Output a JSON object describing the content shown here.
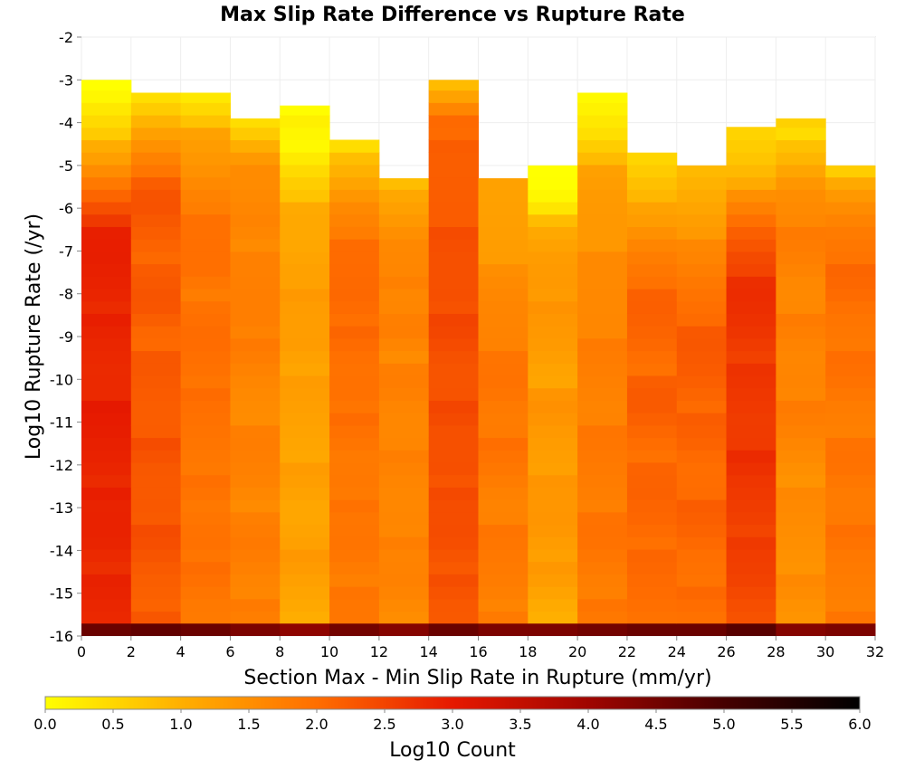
{
  "chart_data": {
    "type": "heatmap",
    "title": "Max Slip Rate Difference vs Rupture Rate",
    "xlabel": "Section Max - Min Slip Rate in Rupture (mm/yr)",
    "ylabel": "Log10 Rupture Rate (/yr)",
    "xlim": [
      0,
      32
    ],
    "ylim": [
      -16,
      -2
    ],
    "x_bin_width": 2,
    "y_bin_width": 0.29,
    "xticks": [
      "0",
      "2",
      "4",
      "6",
      "8",
      "10",
      "12",
      "14",
      "16",
      "18",
      "20",
      "22",
      "24",
      "26",
      "28",
      "30",
      "32"
    ],
    "yticks": [
      "-2",
      "-3",
      "-4",
      "-5",
      "-6",
      "-7",
      "-8",
      "-9",
      "-10",
      "-11",
      "-12",
      "-13",
      "-14",
      "-15",
      "-16"
    ],
    "colorbar": {
      "label": "Log10 Count",
      "range": [
        0,
        6
      ],
      "ticks": [
        "0.0",
        "0.5",
        "1.0",
        "1.5",
        "2.0",
        "2.5",
        "3.0",
        "3.5",
        "4.0",
        "4.5",
        "5.0",
        "5.5",
        "6.0"
      ],
      "colormap": "heat"
    },
    "columns": [
      {
        "x_start": 0,
        "top": -3.0,
        "profile": [
          0.1,
          0.7,
          1.3,
          2.2,
          3.0,
          3.1,
          3.1,
          3.0,
          3.0,
          3.1,
          3.1,
          3.1,
          3.0,
          3.1,
          3.0,
          3.0,
          3.0
        ],
        "bottom_dark": 4.6
      },
      {
        "x_start": 2,
        "top": -3.3,
        "profile": [
          0.5,
          1.4,
          2.1,
          2.5,
          2.4,
          2.3,
          2.5,
          2.3,
          2.4,
          2.4,
          2.5,
          2.4,
          2.5,
          2.5,
          2.4,
          2.4,
          2.3
        ],
        "bottom_dark": 4.7
      },
      {
        "x_start": 4,
        "top": -3.3,
        "profile": [
          0.5,
          1.3,
          1.6,
          2.0,
          2.1,
          2.2,
          2.0,
          2.2,
          2.2,
          2.1,
          2.1,
          2.1,
          2.0,
          2.2,
          2.1,
          2.0,
          2.1
        ],
        "bottom_dark": 4.6
      },
      {
        "x_start": 6,
        "top": -3.9,
        "profile": [
          0.6,
          1.6,
          1.7,
          1.9,
          1.8,
          1.9,
          2.0,
          1.9,
          1.8,
          1.8,
          1.9,
          1.9,
          1.8,
          2.0,
          1.9,
          1.9,
          1.8
        ],
        "bottom_dark": 4.4
      },
      {
        "x_start": 8,
        "top": -3.6,
        "profile": [
          0.3,
          0.2,
          0.8,
          1.2,
          1.3,
          1.5,
          1.4,
          1.5,
          1.4,
          1.4,
          1.4,
          1.4,
          1.3,
          1.5,
          1.4,
          1.3,
          1.2
        ],
        "bottom_dark": 4.2
      },
      {
        "x_start": 10,
        "top": -4.4,
        "profile": [
          0.7,
          1.2,
          1.8,
          2.1,
          2.2,
          2.3,
          2.2,
          2.1,
          2.2,
          2.1,
          2.0,
          2.1,
          2.0,
          2.1,
          2.0,
          2.0,
          2.1
        ],
        "bottom_dark": 4.5
      },
      {
        "x_start": 12,
        "top": -5.3,
        "profile": [
          1.1,
          1.4,
          1.8,
          1.9,
          1.7,
          2.0,
          1.8,
          1.9,
          1.8,
          1.9,
          1.8,
          1.8,
          1.9,
          1.8,
          1.9,
          1.8,
          1.7
        ],
        "bottom_dark": 4.3
      },
      {
        "x_start": 14,
        "top": -3.0,
        "profile": [
          1.0,
          2.3,
          2.3,
          2.4,
          2.5,
          2.5,
          2.6,
          2.6,
          2.5,
          2.6,
          2.5,
          2.6,
          2.5,
          2.6,
          2.5,
          2.4,
          2.5
        ],
        "bottom_dark": 4.6
      },
      {
        "x_start": 16,
        "top": -5.3,
        "profile": [
          1.3,
          1.4,
          1.5,
          1.6,
          1.8,
          1.9,
          2.0,
          2.1,
          2.0,
          2.1,
          2.0,
          1.9,
          2.0,
          2.0,
          2.0,
          1.9,
          1.9
        ],
        "bottom_dark": 4.4
      },
      {
        "x_start": 18,
        "top": -5.0,
        "profile": [
          0.1,
          0.4,
          1.2,
          1.5,
          1.6,
          1.5,
          1.5,
          1.4,
          1.6,
          1.5,
          1.5,
          1.5,
          1.6,
          1.5,
          1.4,
          1.2,
          1.3
        ],
        "bottom_dark": 4.4
      },
      {
        "x_start": 20,
        "top": -3.3,
        "profile": [
          0.2,
          0.6,
          1.3,
          1.5,
          1.6,
          1.7,
          1.8,
          1.9,
          1.9,
          1.9,
          2.0,
          2.0,
          2.0,
          2.1,
          2.0,
          2.0,
          1.9
        ],
        "bottom_dark": 4.5
      },
      {
        "x_start": 22,
        "top": -4.7,
        "profile": [
          0.7,
          1.1,
          1.4,
          1.9,
          2.2,
          2.3,
          2.3,
          2.2,
          2.4,
          2.3,
          2.2,
          2.3,
          2.3,
          2.2,
          2.2,
          2.2,
          2.1
        ],
        "bottom_dark": 4.6
      },
      {
        "x_start": 24,
        "top": -5.0,
        "profile": [
          1.0,
          1.3,
          1.6,
          1.8,
          2.1,
          2.3,
          2.4,
          2.4,
          2.3,
          2.3,
          2.2,
          2.3,
          2.3,
          2.2,
          2.2,
          2.1,
          2.1
        ],
        "bottom_dark": 4.6
      },
      {
        "x_start": 26,
        "top": -4.1,
        "profile": [
          0.7,
          1.0,
          1.6,
          2.3,
          2.7,
          2.9,
          2.9,
          2.8,
          2.8,
          2.8,
          2.9,
          2.8,
          2.8,
          2.7,
          2.7,
          2.6,
          2.6
        ],
        "bottom_dark": 4.8
      },
      {
        "x_start": 28,
        "top": -3.9,
        "profile": [
          0.6,
          1.0,
          1.7,
          1.9,
          1.9,
          1.8,
          1.9,
          1.8,
          1.9,
          1.9,
          1.8,
          1.7,
          1.7,
          1.7,
          1.7,
          1.6,
          1.6
        ],
        "bottom_dark": 4.3
      },
      {
        "x_start": 30,
        "top": -5.0,
        "profile": [
          0.9,
          1.6,
          2.0,
          2.2,
          2.2,
          2.1,
          2.1,
          2.1,
          2.0,
          2.0,
          2.1,
          2.0,
          2.1,
          2.0,
          2.0,
          2.0,
          2.0
        ],
        "bottom_dark": 4.4
      }
    ]
  }
}
